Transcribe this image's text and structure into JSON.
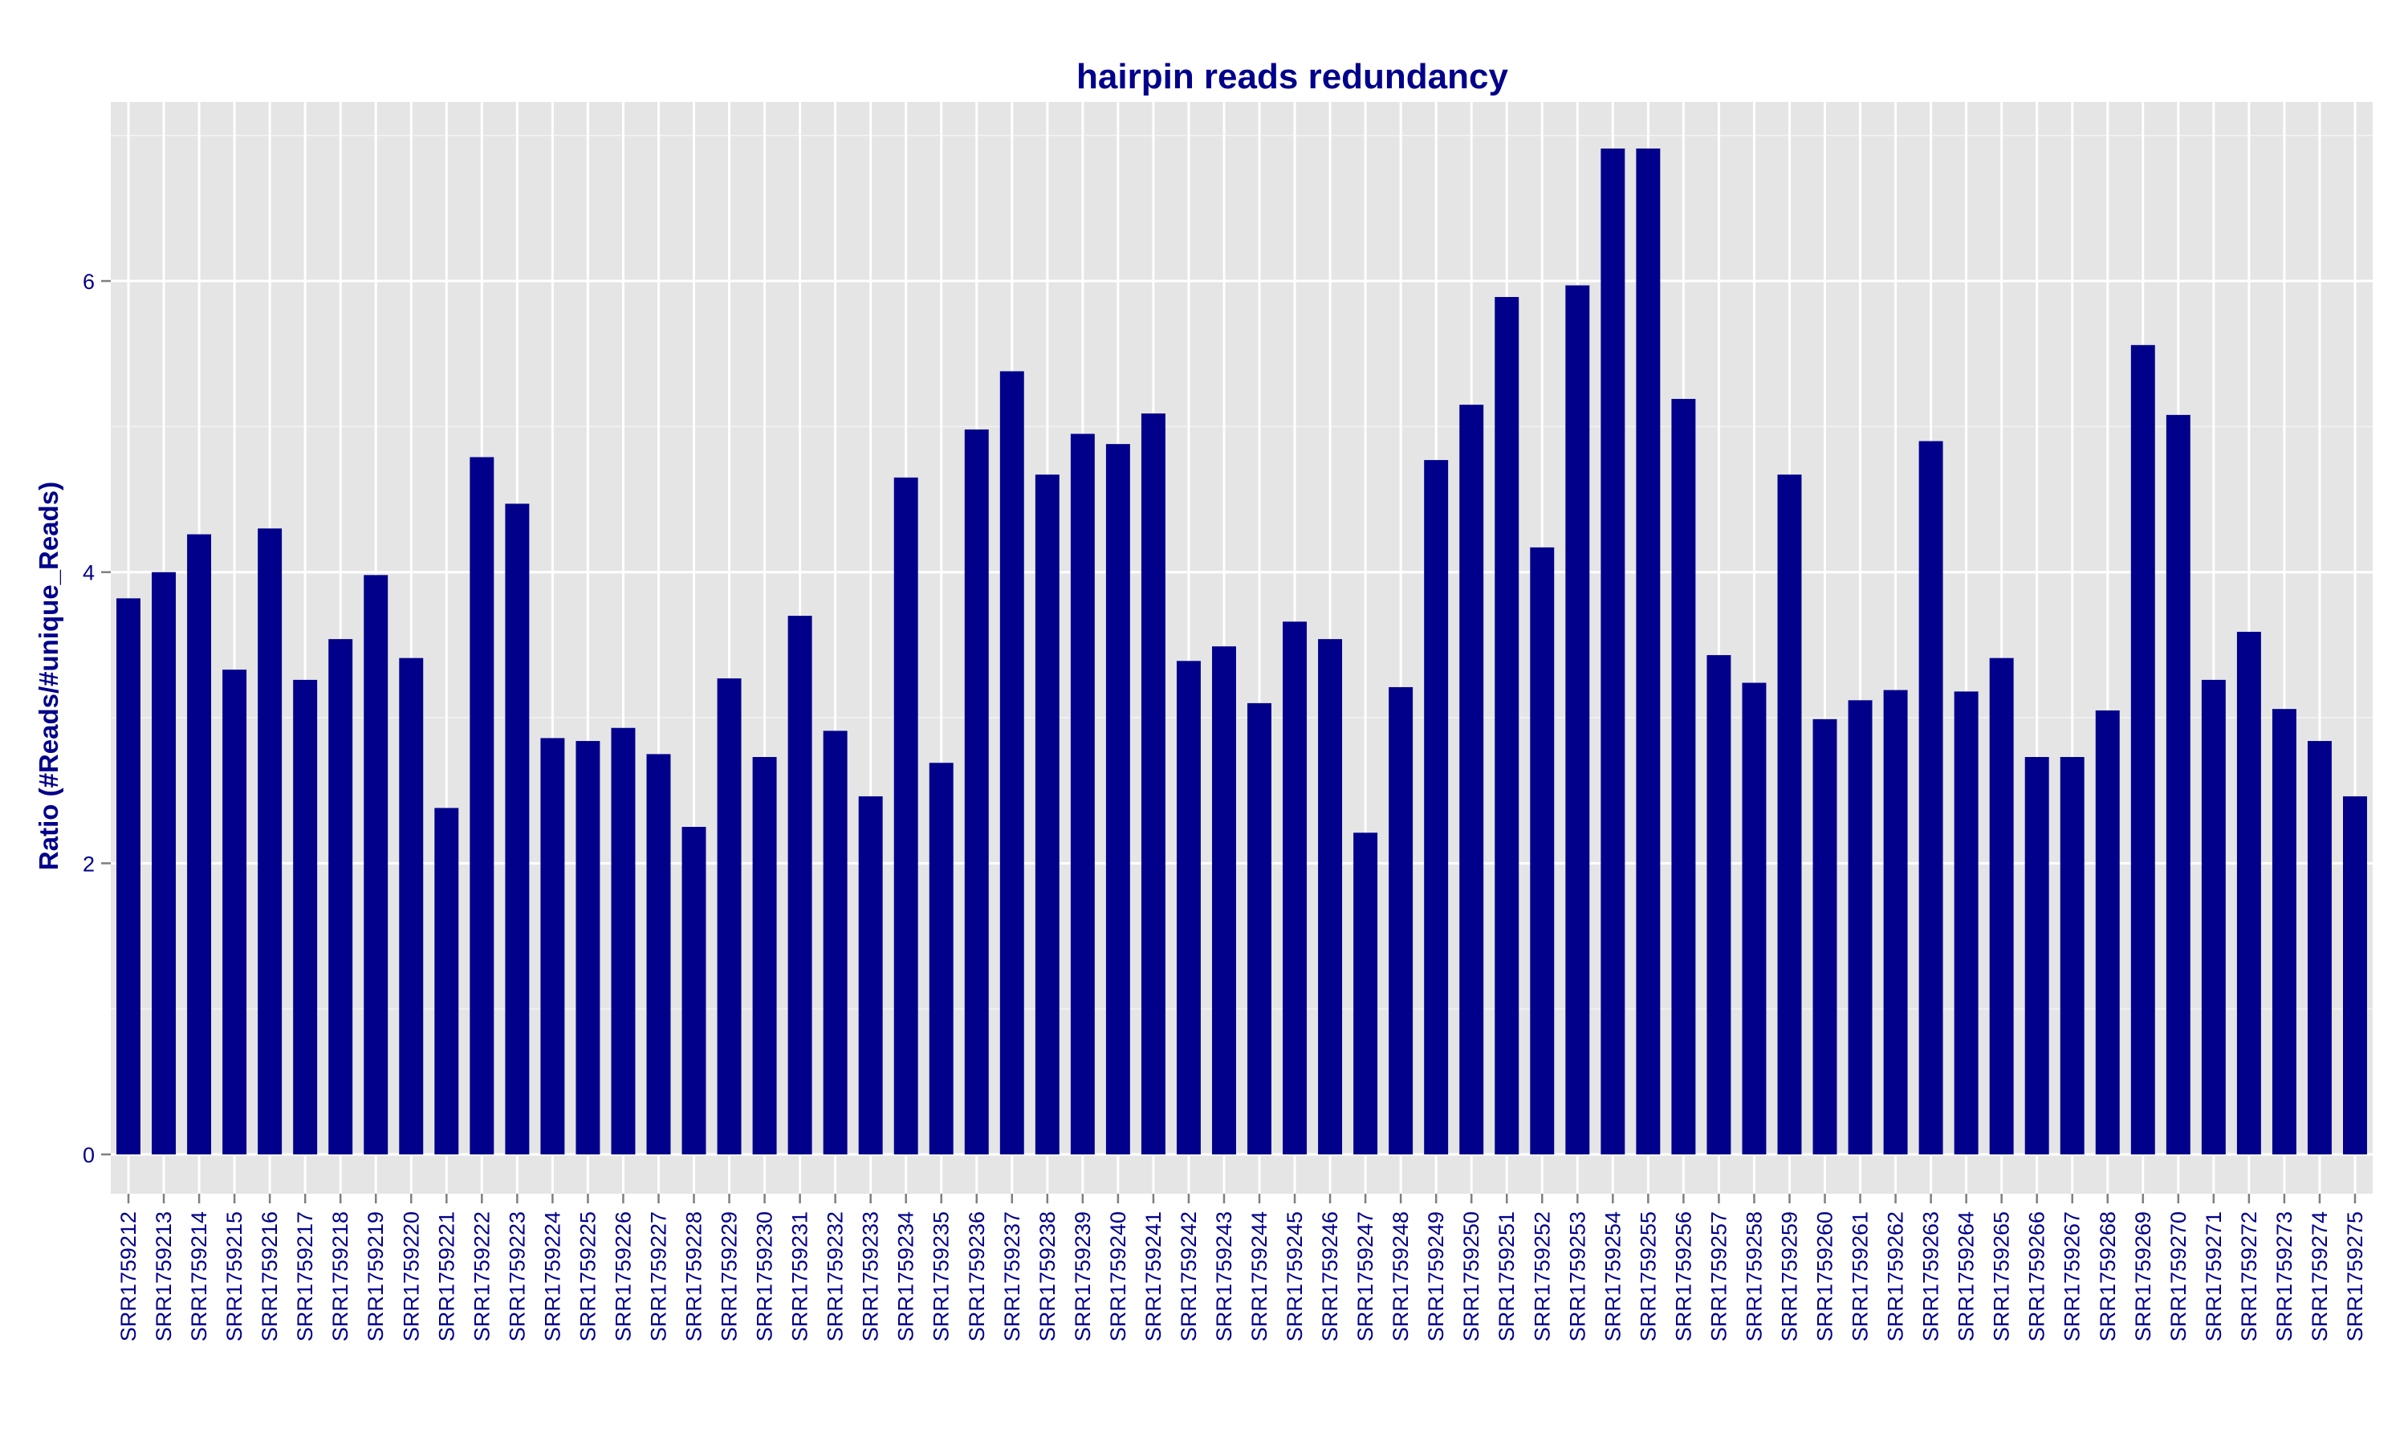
{
  "chart_data": {
    "type": "bar",
    "title": "hairpin reads redundancy",
    "xlabel": "",
    "ylabel": "Ratio (#Reads/#unique_Reads)",
    "ylim": [
      -0.27,
      7.23
    ],
    "yticks": [
      0,
      2,
      4,
      6
    ],
    "grid": true,
    "legend": "none",
    "colors": {
      "bar": "#00008B",
      "panel": "#E5E5E5",
      "grid": "#FFFFFF",
      "text": "#00008B",
      "tick_mark": "#7F7F7F"
    },
    "categories": [
      "SRR1759212",
      "SRR1759213",
      "SRR1759214",
      "SRR1759215",
      "SRR1759216",
      "SRR1759217",
      "SRR1759218",
      "SRR1759219",
      "SRR1759220",
      "SRR1759221",
      "SRR1759222",
      "SRR1759223",
      "SRR1759224",
      "SRR1759225",
      "SRR1759226",
      "SRR1759227",
      "SRR1759228",
      "SRR1759229",
      "SRR1759230",
      "SRR1759231",
      "SRR1759232",
      "SRR1759233",
      "SRR1759234",
      "SRR1759235",
      "SRR1759236",
      "SRR1759237",
      "SRR1759238",
      "SRR1759239",
      "SRR1759240",
      "SRR1759241",
      "SRR1759242",
      "SRR1759243",
      "SRR1759244",
      "SRR1759245",
      "SRR1759246",
      "SRR1759247",
      "SRR1759248",
      "SRR1759249",
      "SRR1759250",
      "SRR1759251",
      "SRR1759252",
      "SRR1759253",
      "SRR1759254",
      "SRR1759255",
      "SRR1759256",
      "SRR1759257",
      "SRR1759258",
      "SRR1759259",
      "SRR1759260",
      "SRR1759261",
      "SRR1759262",
      "SRR1759263",
      "SRR1759264",
      "SRR1759265",
      "SRR1759266",
      "SRR1759267",
      "SRR1759268",
      "SRR1759269",
      "SRR1759270",
      "SRR1759271",
      "SRR1759272",
      "SRR1759273",
      "SRR1759274",
      "SRR1759275"
    ],
    "values": [
      3.82,
      4.0,
      4.26,
      3.33,
      4.3,
      3.26,
      3.54,
      3.98,
      3.41,
      2.38,
      4.79,
      4.47,
      2.86,
      2.84,
      2.93,
      2.75,
      2.25,
      3.27,
      2.73,
      3.7,
      2.91,
      2.46,
      4.65,
      2.69,
      4.98,
      5.38,
      4.67,
      4.95,
      4.88,
      5.09,
      3.39,
      3.49,
      3.1,
      3.66,
      3.54,
      2.21,
      3.21,
      4.77,
      5.15,
      5.89,
      4.17,
      5.97,
      6.91,
      6.91,
      5.19,
      3.43,
      3.24,
      4.67,
      2.99,
      3.12,
      3.19,
      4.9,
      3.18,
      3.41,
      2.73,
      2.73,
      3.05,
      5.56,
      5.08,
      3.26,
      3.59,
      3.06,
      2.84,
      2.46
    ]
  }
}
